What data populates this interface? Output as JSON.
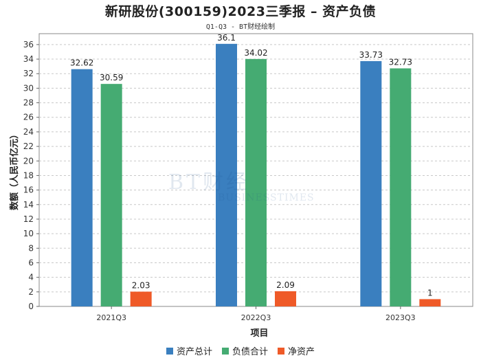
{
  "header": {
    "title": "新研股份(300159)2023三季报 – 资产负债",
    "subtitle": "Q1-Q3 - BT财经绘制"
  },
  "watermark": {
    "main": "BT财经",
    "sub": "BUSINESSTIMES"
  },
  "chart_data": {
    "type": "bar",
    "categories": [
      "2021Q3",
      "2022Q3",
      "2023Q3"
    ],
    "series": [
      {
        "name": "资产总计",
        "values": [
          32.62,
          36.1,
          33.73
        ],
        "color": "#3a7fbf"
      },
      {
        "name": "负债合计",
        "values": [
          30.59,
          34.02,
          32.73
        ],
        "color": "#45ab72"
      },
      {
        "name": "净资产",
        "values": [
          2.03,
          2.09,
          1
        ],
        "color": "#ef5a28"
      }
    ],
    "data_labels": [
      [
        "32.62",
        "30.59",
        "2.03"
      ],
      [
        "36.1",
        "34.02",
        "2.09"
      ],
      [
        "33.73",
        "32.73",
        "1"
      ]
    ],
    "xlabel": "项目",
    "ylabel": "数额（人民币亿元）",
    "ylim": [
      0,
      37.5
    ],
    "yticks": [
      0,
      2,
      4,
      6,
      8,
      10,
      12,
      14,
      16,
      18,
      20,
      22,
      24,
      26,
      28,
      30,
      32,
      34,
      36
    ],
    "grid": true,
    "legend_position": "bottom"
  }
}
